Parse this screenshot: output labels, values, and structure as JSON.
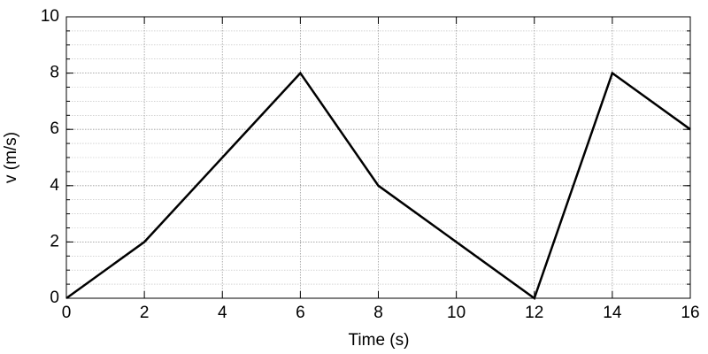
{
  "chart_data": {
    "type": "line",
    "xlabel": "Time (s)",
    "ylabel": "v (m/s)",
    "x": [
      0,
      2,
      6,
      8,
      12,
      14,
      16
    ],
    "values": [
      0,
      2,
      8,
      4,
      0,
      8,
      6
    ],
    "color": "#000000",
    "xlim": [
      0,
      16
    ],
    "xticks": [
      0,
      2,
      4,
      6,
      8,
      10,
      12,
      14,
      16
    ],
    "ylim": [
      0,
      10
    ],
    "yticks": [
      0,
      2,
      4,
      6,
      8,
      10
    ],
    "y_minor_step": 0.5,
    "grid": true
  }
}
